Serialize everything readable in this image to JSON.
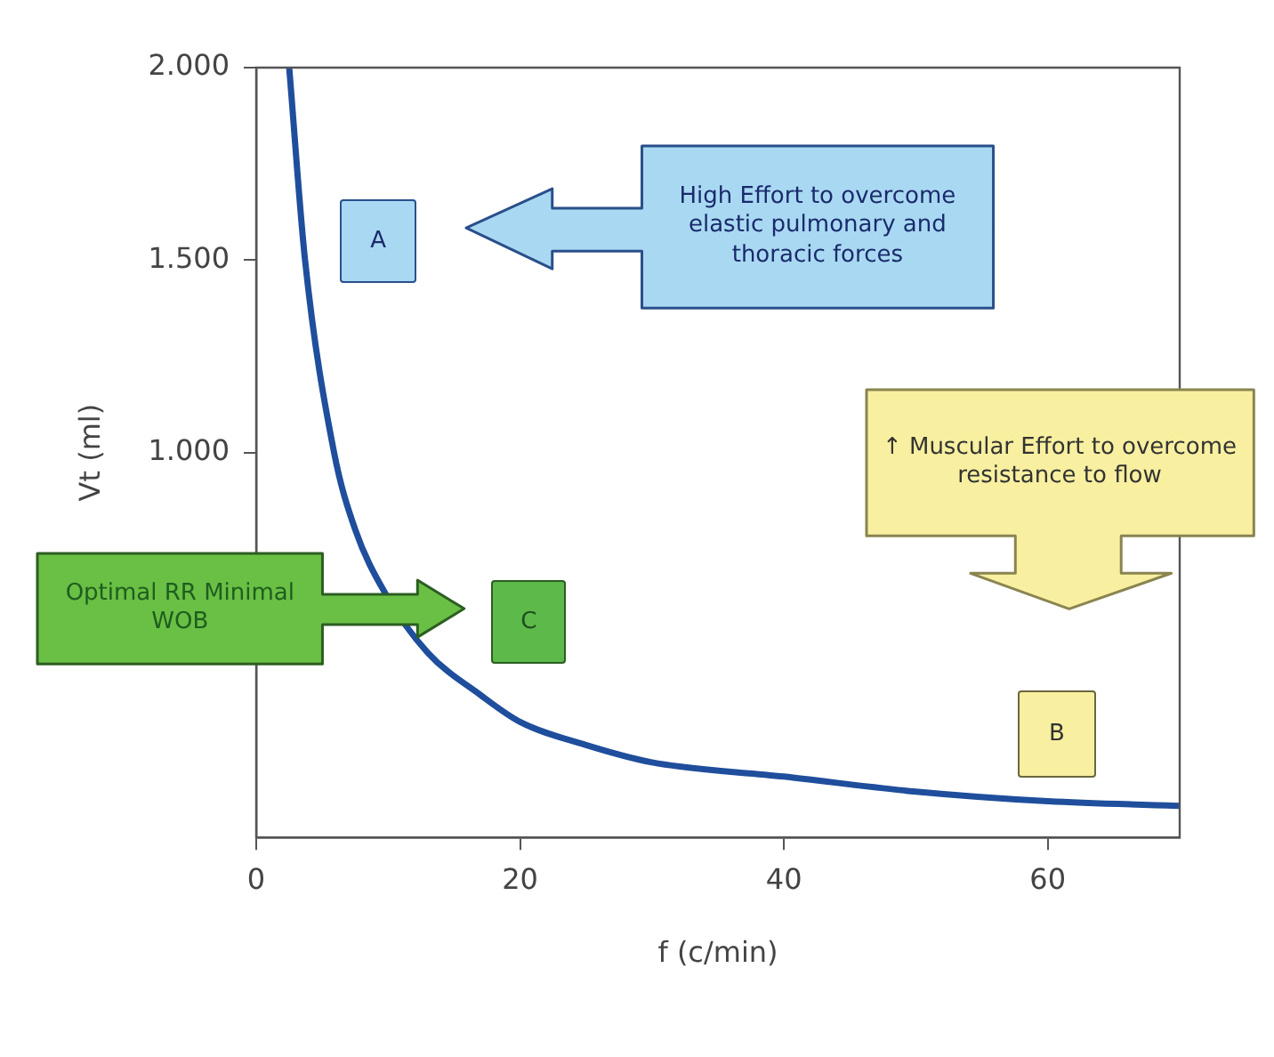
{
  "chart_data": {
    "type": "line",
    "xlabel": "f (c/min)",
    "ylabel": "Vt (ml)",
    "xlim": [
      0,
      70
    ],
    "xticks": [
      0,
      20,
      40,
      60
    ],
    "ylim": [
      0,
      2000
    ],
    "yticks": [
      {
        "value": 1000,
        "label": "1.000"
      },
      {
        "value": 1500,
        "label": "1.500"
      },
      {
        "value": 2000,
        "label": "2.000"
      }
    ],
    "grid": false,
    "legend": false,
    "marker": "none",
    "line_style": "solid",
    "series": [
      {
        "color": "#1f4e9c",
        "x": [
          2.5,
          3.7,
          5.9,
          7.5,
          9.8,
          13,
          17,
          20,
          25,
          30,
          40,
          50,
          60,
          70
        ],
        "values": [
          2000,
          1500,
          1000,
          800,
          633,
          480,
          370,
          300,
          240,
          195,
          158,
          119,
          94,
          82
        ]
      }
    ],
    "annotations": [
      "A",
      "B",
      "C",
      "High Effort to overcome elastic pulmonary and thoracic forces",
      "↑ Muscular Effort to overcome resistance to flow",
      "Optimal RR Minimal WOB"
    ]
  }
}
